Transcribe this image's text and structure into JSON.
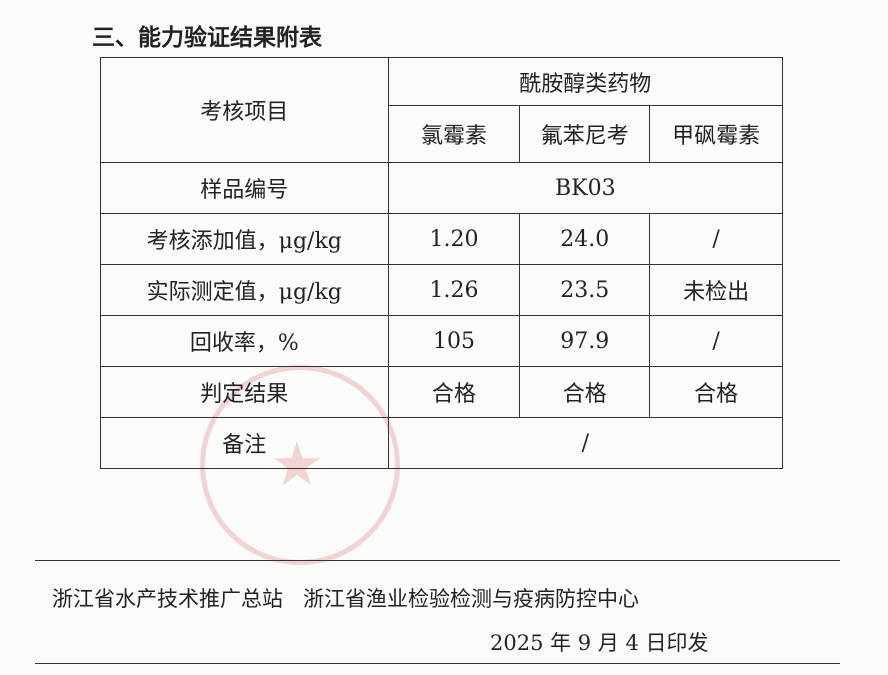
{
  "title": "三、能力验证结果附表",
  "table": {
    "item_header": "考核项目",
    "group_header": "酰胺醇类药物",
    "drugs": [
      "氯霉素",
      "氟苯尼考",
      "甲砜霉素"
    ],
    "sample_label": "样品编号",
    "sample_value": "BK03",
    "rows": [
      {
        "label": "考核添加值，μg/kg",
        "values": [
          "1.20",
          "24.0",
          "/"
        ]
      },
      {
        "label": "实际测定值，μg/kg",
        "values": [
          "1.26",
          "23.5",
          "未检出"
        ]
      },
      {
        "label": "回收率，%",
        "values": [
          "105",
          "97.9",
          "/"
        ]
      },
      {
        "label": "判定结果",
        "values": [
          "合格",
          "合格",
          "合格"
        ]
      }
    ],
    "remark_label": "备注",
    "remark_value": "/"
  },
  "footer": {
    "org1": "浙江省水产技术推广总站",
    "org2": "浙江省渔业检验检测与疫病防控中心",
    "date": "2025 年 9 月 4 日印发"
  }
}
